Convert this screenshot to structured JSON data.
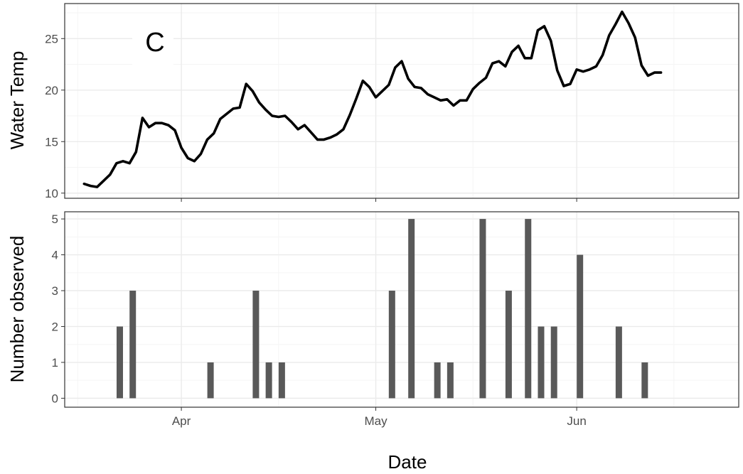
{
  "chart_data": [
    {
      "type": "line",
      "panel_tag": "C",
      "xlabel": "",
      "ylabel": "Water Temp",
      "ylim": [
        9.5,
        28.4
      ],
      "yticks": [
        10,
        15,
        20,
        25
      ],
      "xlim": [
        "2025-03-14",
        "2025-06-26"
      ],
      "grid": true,
      "series": [
        {
          "x": [
            "2025-03-17",
            "2025-03-18",
            "2025-03-19",
            "2025-03-20",
            "2025-03-21",
            "2025-03-22",
            "2025-03-23",
            "2025-03-24",
            "2025-03-25",
            "2025-03-26",
            "2025-03-27",
            "2025-03-28",
            "2025-03-29",
            "2025-03-30",
            "2025-03-31",
            "2025-04-01",
            "2025-04-02",
            "2025-04-03",
            "2025-04-04",
            "2025-04-05",
            "2025-04-06",
            "2025-04-07",
            "2025-04-08",
            "2025-04-09",
            "2025-04-10",
            "2025-04-11",
            "2025-04-12",
            "2025-04-13",
            "2025-04-14",
            "2025-04-15",
            "2025-04-16",
            "2025-04-17",
            "2025-04-18",
            "2025-04-19",
            "2025-04-20",
            "2025-04-21",
            "2025-04-22",
            "2025-04-23",
            "2025-04-24",
            "2025-04-25",
            "2025-04-26",
            "2025-04-27",
            "2025-04-28",
            "2025-04-29",
            "2025-04-30",
            "2025-05-01",
            "2025-05-02",
            "2025-05-03",
            "2025-05-04",
            "2025-05-05",
            "2025-05-06",
            "2025-05-07",
            "2025-05-08",
            "2025-05-09",
            "2025-05-10",
            "2025-05-11",
            "2025-05-12",
            "2025-05-13",
            "2025-05-14",
            "2025-05-15",
            "2025-05-16",
            "2025-05-17",
            "2025-05-18",
            "2025-05-19",
            "2025-05-20",
            "2025-05-21",
            "2025-05-22",
            "2025-05-23",
            "2025-05-24",
            "2025-05-25",
            "2025-05-26",
            "2025-05-27",
            "2025-05-28",
            "2025-05-29",
            "2025-05-30",
            "2025-05-31",
            "2025-06-01",
            "2025-06-02",
            "2025-06-03",
            "2025-06-04",
            "2025-06-05",
            "2025-06-06",
            "2025-06-07",
            "2025-06-08",
            "2025-06-09",
            "2025-06-10",
            "2025-06-11",
            "2025-06-12",
            "2025-06-13",
            "2025-06-14"
          ],
          "y": [
            10.9,
            10.7,
            10.6,
            11.2,
            11.8,
            12.9,
            13.1,
            12.9,
            14.0,
            17.3,
            16.4,
            16.8,
            16.8,
            16.6,
            16.1,
            14.4,
            13.4,
            13.1,
            13.8,
            15.2,
            15.8,
            17.2,
            17.7,
            18.2,
            18.3,
            20.6,
            19.9,
            18.8,
            18.1,
            17.5,
            17.4,
            17.5,
            16.9,
            16.2,
            16.6,
            15.9,
            15.2,
            15.2,
            15.4,
            15.7,
            16.2,
            17.6,
            19.2,
            20.9,
            20.3,
            19.3,
            19.9,
            20.5,
            22.2,
            22.8,
            21.1,
            20.3,
            20.2,
            19.6,
            19.3,
            19.0,
            19.1,
            18.5,
            19.0,
            19.0,
            20.1,
            20.7,
            21.2,
            22.6,
            22.8,
            22.3,
            23.7,
            24.3,
            23.1,
            23.1,
            25.8,
            26.2,
            24.8,
            21.9,
            20.4,
            20.6,
            22.0,
            21.8,
            22.0,
            22.3,
            23.4,
            25.3,
            26.4,
            27.6,
            26.5,
            25.1,
            22.4,
            21.4,
            21.7,
            21.7
          ]
        }
      ]
    },
    {
      "type": "bar",
      "xlabel": "Date",
      "ylabel": "Number observed",
      "ylim": [
        -0.25,
        5.2
      ],
      "yticks": [
        0,
        1,
        2,
        3,
        4,
        5
      ],
      "xlim": [
        "2025-03-14",
        "2025-06-26"
      ],
      "xticks": [
        {
          "date": "2025-04-01",
          "label": "Apr"
        },
        {
          "date": "2025-05-01",
          "label": "May"
        },
        {
          "date": "2025-06-01",
          "label": "Jun"
        }
      ],
      "grid": true,
      "bars": [
        {
          "x": "2025-03-22",
          "value": 2
        },
        {
          "x": "2025-03-24",
          "value": 3
        },
        {
          "x": "2025-04-05",
          "value": 1
        },
        {
          "x": "2025-04-12",
          "value": 3
        },
        {
          "x": "2025-04-14",
          "value": 1
        },
        {
          "x": "2025-04-16",
          "value": 1
        },
        {
          "x": "2025-05-03",
          "value": 3
        },
        {
          "x": "2025-05-06",
          "value": 5
        },
        {
          "x": "2025-05-10",
          "value": 1
        },
        {
          "x": "2025-05-12",
          "value": 1
        },
        {
          "x": "2025-05-17",
          "value": 5
        },
        {
          "x": "2025-05-21",
          "value": 3
        },
        {
          "x": "2025-05-24",
          "value": 5
        },
        {
          "x": "2025-05-26",
          "value": 2
        },
        {
          "x": "2025-05-28",
          "value": 2
        },
        {
          "x": "2025-06-01",
          "value": 4
        },
        {
          "x": "2025-06-07",
          "value": 2
        },
        {
          "x": "2025-06-11",
          "value": 1
        }
      ]
    }
  ],
  "colors": {
    "line": "#000000",
    "bar": "#595959",
    "grid_major": "#ebebeb",
    "grid_minor": "#f5f5f5",
    "panel_border": "#333333",
    "tick_text": "#4d4d4d"
  }
}
